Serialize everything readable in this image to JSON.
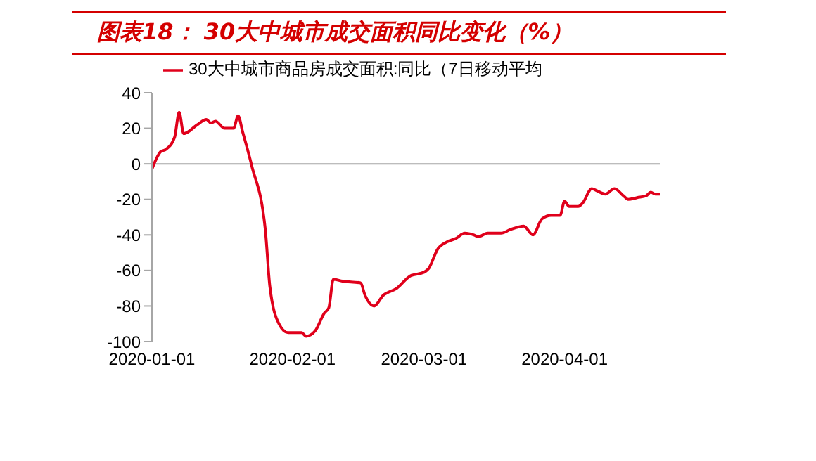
{
  "chart_data": {
    "type": "line",
    "title": "图表18：  30大中城市成交面积同比变化（%）",
    "x": [
      "2020-01-01",
      "2020-01-03",
      "2020-01-04",
      "2020-01-06",
      "2020-01-07",
      "2020-01-08",
      "2020-01-11",
      "2020-01-13",
      "2020-01-14",
      "2020-01-15",
      "2020-01-17",
      "2020-01-19",
      "2020-01-20",
      "2020-01-21",
      "2020-01-23",
      "2020-01-26",
      "2020-01-27",
      "2020-01-29",
      "2020-01-31",
      "2020-02-03",
      "2020-02-04",
      "2020-02-06",
      "2020-02-08",
      "2020-02-09",
      "2020-02-10",
      "2020-02-12",
      "2020-02-16",
      "2020-02-17",
      "2020-02-19",
      "2020-02-21",
      "2020-02-24",
      "2020-02-27",
      "2020-03-01",
      "2020-03-02",
      "2020-03-04",
      "2020-03-06",
      "2020-03-08",
      "2020-03-10",
      "2020-03-12",
      "2020-03-13",
      "2020-03-15",
      "2020-03-18",
      "2020-03-20",
      "2020-03-23",
      "2020-03-25",
      "2020-03-27",
      "2020-03-29",
      "2020-03-31",
      "2020-04-01",
      "2020-04-02",
      "2020-04-04",
      "2020-04-05",
      "2020-04-07",
      "2020-04-08",
      "2020-04-10",
      "2020-04-12",
      "2020-04-14",
      "2020-04-15",
      "2020-04-17",
      "2020-04-19",
      "2020-04-20",
      "2020-04-21",
      "2020-04-22"
    ],
    "series": [
      {
        "name": "30大中城市商品房成交面积:同比（7日移动平均",
        "color": "#e0001b",
        "values": [
          -3,
          7,
          8,
          15,
          29,
          17,
          22,
          25,
          23,
          24,
          20,
          20,
          27,
          18,
          -1,
          -37,
          -69,
          -90,
          -95,
          -95,
          -97,
          -94,
          -84,
          -81,
          -65,
          -66,
          -67,
          -74,
          -80,
          -74,
          -70,
          -63,
          -61,
          -59,
          -48,
          -44,
          -42,
          -39,
          -40,
          -41,
          -39,
          -39,
          -37,
          -35,
          -40,
          -31,
          -29,
          -29,
          -21,
          -24,
          -24,
          -22,
          -14,
          -15,
          -17,
          -14,
          -18,
          -20,
          -19,
          -18,
          -16,
          -17,
          -17
        ]
      }
    ],
    "xlim": [
      "2020-01-01",
      "2020-04-22"
    ],
    "xticks": [
      "2020-01-01",
      "2020-02-01",
      "2020-03-01",
      "2020-04-01"
    ],
    "ylim": [
      -100,
      40
    ],
    "yticks": [
      -100,
      -80,
      -60,
      -40,
      -20,
      0,
      20,
      40
    ],
    "ref_lines": [
      {
        "axis": "y",
        "value": 0,
        "color": "#a6a6a6"
      }
    ],
    "grid": false,
    "legend": "top left",
    "marker": "none",
    "line_style": "solid"
  }
}
